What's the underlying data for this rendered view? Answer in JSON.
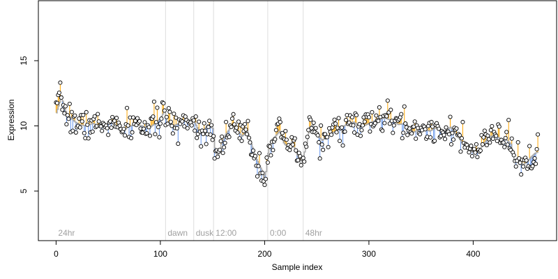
{
  "chart_data": {
    "type": "scatter",
    "title": "",
    "xlabel": "Sample index",
    "ylabel": "Expression",
    "xlim": [
      -17,
      480
    ],
    "ylim": [
      1.2,
      19.6
    ],
    "xticks": [
      0,
      100,
      200,
      300,
      400
    ],
    "yticks": [
      5,
      10,
      15
    ],
    "grid": false,
    "legend": "none",
    "colors": {
      "above": "#ffa500",
      "below": "#6495ed",
      "baseline": "#aaaaaa",
      "point_stroke": "#000000",
      "point_fill": "#ffffff",
      "region_line": "#dddddd",
      "region_text": "#a0a0a0"
    },
    "regions": [
      {
        "label": "24hr",
        "x": 0
      },
      {
        "label": "dawn",
        "x": 105
      },
      {
        "label": "dusk",
        "x": 132
      },
      {
        "label": "12:00",
        "x": 151
      },
      {
        "label": "0:00",
        "x": 203
      },
      {
        "label": "48hr",
        "x": 237
      }
    ],
    "anchors": [
      [
        0,
        11.0
      ],
      [
        3,
        11.8
      ],
      [
        5,
        12.3
      ],
      [
        7,
        11.5
      ],
      [
        10,
        10.9
      ],
      [
        14,
        10.6
      ],
      [
        18,
        10.3
      ],
      [
        22,
        10.1
      ],
      [
        28,
        10.0
      ],
      [
        35,
        10.2
      ],
      [
        42,
        9.9
      ],
      [
        48,
        10.1
      ],
      [
        52,
        10.3
      ],
      [
        58,
        9.9
      ],
      [
        63,
        9.5
      ],
      [
        68,
        9.9
      ],
      [
        75,
        10.1
      ],
      [
        82,
        10.0
      ],
      [
        88,
        9.8
      ],
      [
        95,
        10.2
      ],
      [
        100,
        10.6
      ],
      [
        104,
        11.2
      ],
      [
        106,
        10.3
      ],
      [
        112,
        10.0
      ],
      [
        118,
        10.2
      ],
      [
        125,
        10.5
      ],
      [
        132,
        10.4
      ],
      [
        136,
        9.7
      ],
      [
        140,
        9.5
      ],
      [
        145,
        10.1
      ],
      [
        150,
        9.8
      ],
      [
        152,
        8.3
      ],
      [
        155,
        7.6
      ],
      [
        158,
        8.6
      ],
      [
        162,
        9.3
      ],
      [
        168,
        10.0
      ],
      [
        173,
        9.7
      ],
      [
        178,
        9.2
      ],
      [
        183,
        9.6
      ],
      [
        187,
        8.6
      ],
      [
        191,
        7.6
      ],
      [
        194,
        7.1
      ],
      [
        197,
        6.6
      ],
      [
        199,
        6.0
      ],
      [
        201,
        6.5
      ],
      [
        203,
        7.9
      ],
      [
        206,
        8.9
      ],
      [
        210,
        9.2
      ],
      [
        214,
        9.6
      ],
      [
        218,
        8.7
      ],
      [
        222,
        8.3
      ],
      [
        226,
        8.8
      ],
      [
        229,
        8.1
      ],
      [
        232,
        7.6
      ],
      [
        235,
        6.9
      ],
      [
        237,
        7.7
      ],
      [
        240,
        8.6
      ],
      [
        243,
        9.9
      ],
      [
        246,
        10.1
      ],
      [
        250,
        9.3
      ],
      [
        255,
        8.9
      ],
      [
        262,
        9.3
      ],
      [
        270,
        9.7
      ],
      [
        278,
        10.1
      ],
      [
        285,
        10.3
      ],
      [
        292,
        9.9
      ],
      [
        300,
        10.2
      ],
      [
        308,
        10.5
      ],
      [
        315,
        10.6
      ],
      [
        322,
        10.4
      ],
      [
        328,
        10.1
      ],
      [
        335,
        10.2
      ],
      [
        342,
        9.5
      ],
      [
        350,
        9.8
      ],
      [
        358,
        9.6
      ],
      [
        365,
        9.9
      ],
      [
        372,
        9.6
      ],
      [
        378,
        9.9
      ],
      [
        384,
        9.3
      ],
      [
        390,
        8.6
      ],
      [
        396,
        8.1
      ],
      [
        402,
        7.9
      ],
      [
        408,
        8.4
      ],
      [
        414,
        9.1
      ],
      [
        420,
        9.3
      ],
      [
        426,
        9.0
      ],
      [
        432,
        8.9
      ],
      [
        436,
        8.6
      ],
      [
        439,
        7.3
      ],
      [
        443,
        7.6
      ],
      [
        447,
        7.0
      ],
      [
        451,
        7.2
      ],
      [
        455,
        7.6
      ],
      [
        459,
        7.9
      ],
      [
        462,
        8.0
      ]
    ],
    "n_points": 463,
    "noise_sd": 0.55,
    "random_seed": 7
  }
}
